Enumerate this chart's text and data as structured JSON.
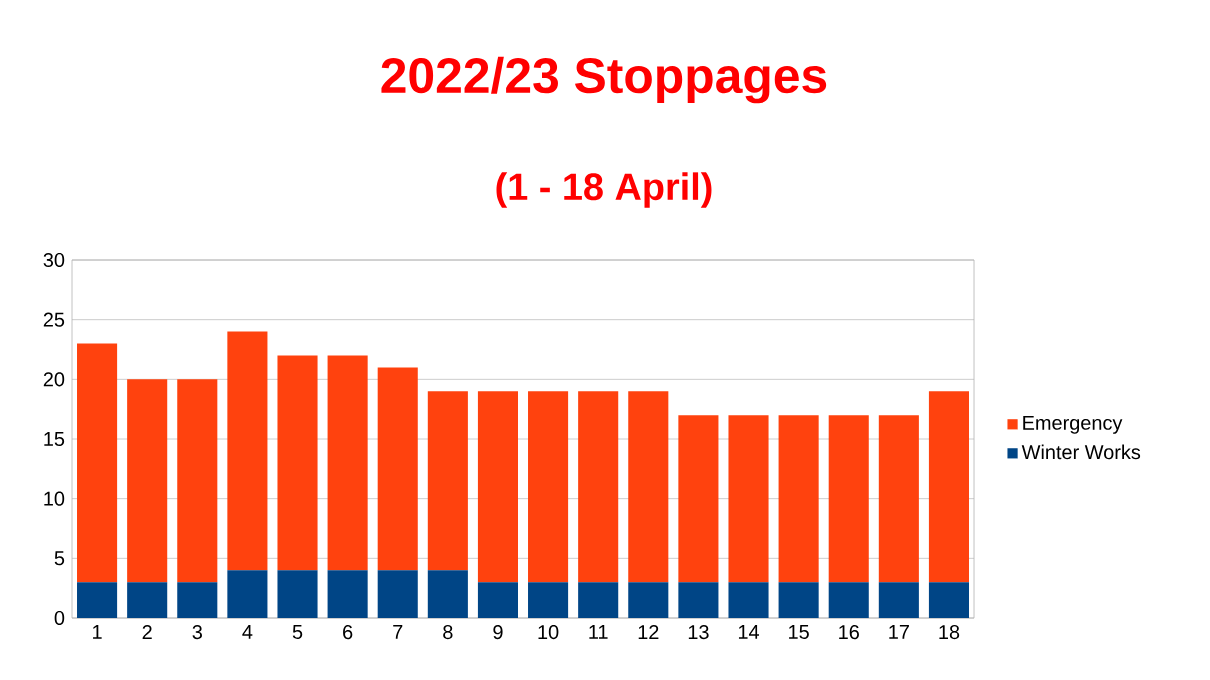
{
  "chart_data": {
    "type": "bar",
    "title": "2022/23 Stoppages",
    "subtitle": "(1 - 18 April)",
    "stacked": true,
    "categories": [
      "1",
      "2",
      "3",
      "4",
      "5",
      "6",
      "7",
      "8",
      "9",
      "10",
      "11",
      "12",
      "13",
      "14",
      "15",
      "16",
      "17",
      "18"
    ],
    "series": [
      {
        "name": "Winter Works",
        "color": "#004586",
        "values": [
          3,
          3,
          3,
          4,
          4,
          4,
          4,
          4,
          3,
          3,
          3,
          3,
          3,
          3,
          3,
          3,
          3,
          3
        ]
      },
      {
        "name": "Emergency",
        "color": "#ff420e",
        "values": [
          20,
          17,
          17,
          20,
          18,
          18,
          17,
          15,
          16,
          16,
          16,
          16,
          14,
          14,
          14,
          14,
          14,
          16
        ]
      }
    ],
    "ylim": [
      0,
      30
    ],
    "yticks": [
      0,
      5,
      10,
      15,
      20,
      25,
      30
    ],
    "grid": "y",
    "legend": "right"
  }
}
